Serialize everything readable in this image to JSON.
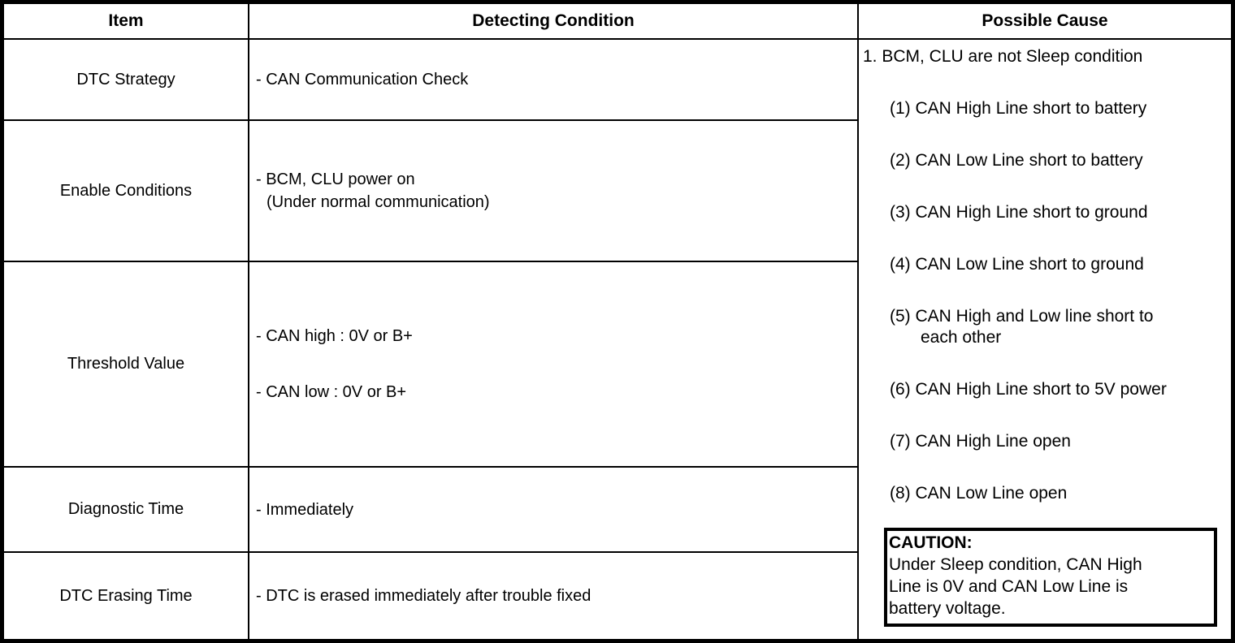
{
  "header": {
    "item": "Item",
    "detecting_condition": "Detecting Condition",
    "possible_cause": "Possible Cause"
  },
  "rows": [
    {
      "item": "DTC Strategy",
      "condition_lines": [
        "- CAN Communication Check"
      ]
    },
    {
      "item": "Enable Conditions",
      "condition_lines": [
        "- BCM, CLU power on",
        "(Under normal communication)"
      ]
    },
    {
      "item": "Threshold Value",
      "condition_lines": [
        "- CAN high : 0V or B+",
        "- CAN low : 0V or B+"
      ]
    },
    {
      "item": "Diagnostic Time",
      "condition_lines": [
        "- Immediately"
      ]
    },
    {
      "item": "DTC Erasing Time",
      "condition_lines": [
        "- DTC is erased immediately after trouble fixed"
      ]
    }
  ],
  "possible_cause": {
    "intro": "1. BCM, CLU are not Sleep condition",
    "items": [
      "(1) CAN High Line short to battery",
      "(2) CAN Low Line short to battery",
      "(3) CAN High Line short to ground",
      "(4) CAN Low Line short to ground",
      "(5) CAN High and Low line short to",
      "(6) CAN High Line short to 5V power",
      "(7) CAN High Line open",
      "(8) CAN Low Line open"
    ],
    "item5_continuation": "each other",
    "caution": {
      "title": "CAUTION:",
      "lines": [
        "Under Sleep condition, CAN High",
        "Line is 0V and CAN Low Line is",
        "battery voltage."
      ]
    }
  },
  "colors": {
    "border": "#000000",
    "background": "#ffffff",
    "text": "#000000"
  }
}
